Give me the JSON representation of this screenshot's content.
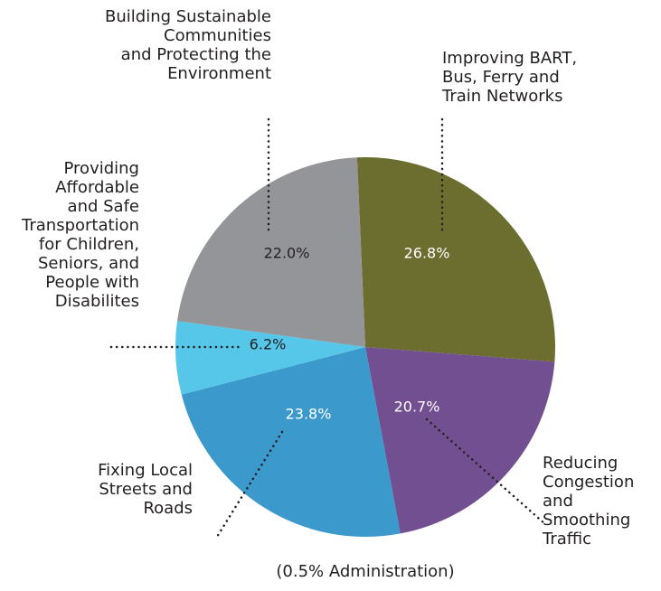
{
  "chart_data": {
    "type": "pie",
    "categories": [
      "Improving BART,\nBus, Ferry and\nTrain Networks",
      "Reducing\nCongestion\nand\nSmoothing\nTraffic",
      "Fixing Local\nStreets and\nRoads",
      "Providing\nAffordable\nand Safe\nTransportation\nfor Children,\nSeniors, and\nPeople with\nDisabilites",
      "Building Sustainable\nCommunities\nand Protecting the\nEnvironment"
    ],
    "values": [
      26.8,
      20.7,
      23.8,
      6.2,
      22.0
    ],
    "value_labels": [
      "26.8%",
      "20.7%",
      "23.8%",
      "6.2%",
      "22.0%"
    ],
    "colors": [
      "#6b6e2f",
      "#724f90",
      "#3b99cc",
      "#56c7e8",
      "#939598"
    ],
    "note": "(0.5% Administration)"
  }
}
